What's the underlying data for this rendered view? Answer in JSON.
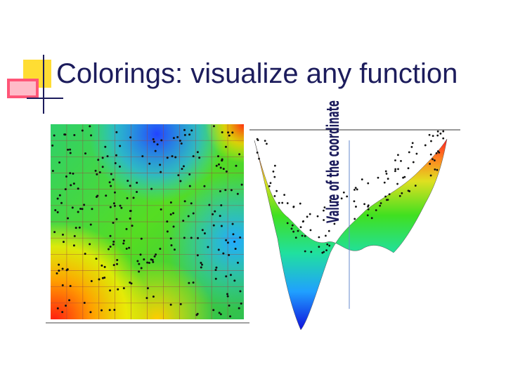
{
  "title": "Colorings: visualize any function",
  "figure": {
    "axis_label": "Value of the coordinate"
  }
}
